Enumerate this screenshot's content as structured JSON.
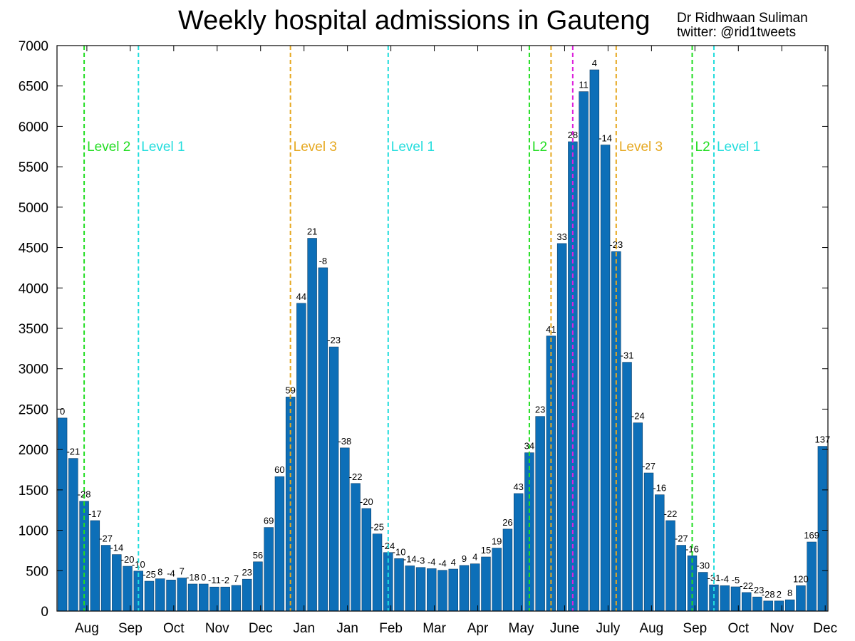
{
  "chart_data": {
    "type": "bar",
    "title": "Weekly hospital admissions in Gauteng",
    "credit": {
      "name": "Dr Ridhwaan Suliman",
      "handle": "twitter: @rid1tweets"
    },
    "ylim": [
      0,
      7000
    ],
    "yticks": [
      "0",
      "500",
      "1000",
      "1500",
      "2000",
      "2500",
      "3000",
      "3500",
      "4000",
      "4500",
      "5000",
      "5500",
      "6000",
      "6500",
      "7000"
    ],
    "bar_color": "#0d6fb8",
    "values": [
      2390,
      1890,
      1360,
      1120,
      815,
      700,
      555,
      495,
      370,
      400,
      385,
      410,
      335,
      335,
      298,
      298,
      318,
      395,
      610,
      1035,
      1665,
      2650,
      3810,
      4615,
      4250,
      3270,
      2020,
      1580,
      1270,
      955,
      725,
      650,
      560,
      540,
      525,
      505,
      520,
      565,
      585,
      670,
      780,
      1015,
      1455,
      1960,
      2410,
      3405,
      4550,
      5810,
      6430,
      6700,
      5770,
      4450,
      3080,
      2330,
      1710,
      1440,
      1120,
      815,
      685,
      480,
      325,
      315,
      300,
      230,
      175,
      125,
      125,
      140,
      315,
      855,
      2040
    ],
    "labels": [
      "0",
      "-21",
      "-28",
      "-17",
      "-27",
      "-14",
      "-20",
      "-10",
      "-25",
      "8",
      "-4",
      "7",
      "-18",
      "0",
      "-11",
      "-2",
      "7",
      "23",
      "56",
      "69",
      "60",
      "59",
      "44",
      "21",
      "-8",
      "-23",
      "-38",
      "-22",
      "-20",
      "-25",
      "-24",
      "-10",
      "-14",
      "-3",
      "-4",
      "-4",
      "4",
      "9",
      "4",
      "15",
      "19",
      "26",
      "43",
      "34",
      "23",
      "41",
      "33",
      "28",
      "11",
      "4",
      "-14",
      "-23",
      "-31",
      "-24",
      "-27",
      "-16",
      "-22",
      "-27",
      "-16",
      "-30",
      "-31",
      "-4",
      "-5",
      "-22",
      "-23",
      "-28",
      "2",
      "8",
      "120",
      "169",
      "137"
    ],
    "months": [
      {
        "label": "Aug",
        "pos": 2.75
      },
      {
        "label": "Sep",
        "pos": 6.75
      },
      {
        "label": "Oct",
        "pos": 10.75
      },
      {
        "label": "Nov",
        "pos": 14.75
      },
      {
        "label": "Dec",
        "pos": 18.75
      },
      {
        "label": "Jan",
        "pos": 22.75
      },
      {
        "label": "Jan",
        "pos": 26.75
      },
      {
        "label": "Feb",
        "pos": 30.75
      },
      {
        "label": "Mar",
        "pos": 34.75
      },
      {
        "label": "Apr",
        "pos": 38.75
      },
      {
        "label": "May",
        "pos": 42.75
      },
      {
        "label": "June",
        "pos": 46.75
      },
      {
        "label": "July",
        "pos": 50.75
      },
      {
        "label": "Aug",
        "pos": 54.75
      },
      {
        "label": "Sep",
        "pos": 58.75
      },
      {
        "label": "Oct",
        "pos": 62.75
      },
      {
        "label": "Nov",
        "pos": 66.75
      },
      {
        "label": "Dec",
        "pos": 70.75
      }
    ],
    "markers": [
      {
        "pos": 2.5,
        "color": "#22dd22",
        "label": "Level 2"
      },
      {
        "pos": 7.5,
        "color": "#22dddd",
        "label": "Level 1"
      },
      {
        "pos": 21.5,
        "color": "#e6a820",
        "label": "Level 3"
      },
      {
        "pos": 30.5,
        "color": "#22dddd",
        "label": "Level 1"
      },
      {
        "pos": 43.5,
        "color": "#22dd22",
        "label": "L2"
      },
      {
        "pos": 45.5,
        "color": "#e6a820",
        "label": ""
      },
      {
        "pos": 47.5,
        "color": "#dd22dd",
        "label": ""
      },
      {
        "pos": 51.5,
        "color": "#e6a820",
        "label": "Level 3"
      },
      {
        "pos": 58.5,
        "color": "#22dd22",
        "label": "L2"
      },
      {
        "pos": 60.5,
        "color": "#22dddd",
        "label": "Level 1"
      }
    ]
  }
}
